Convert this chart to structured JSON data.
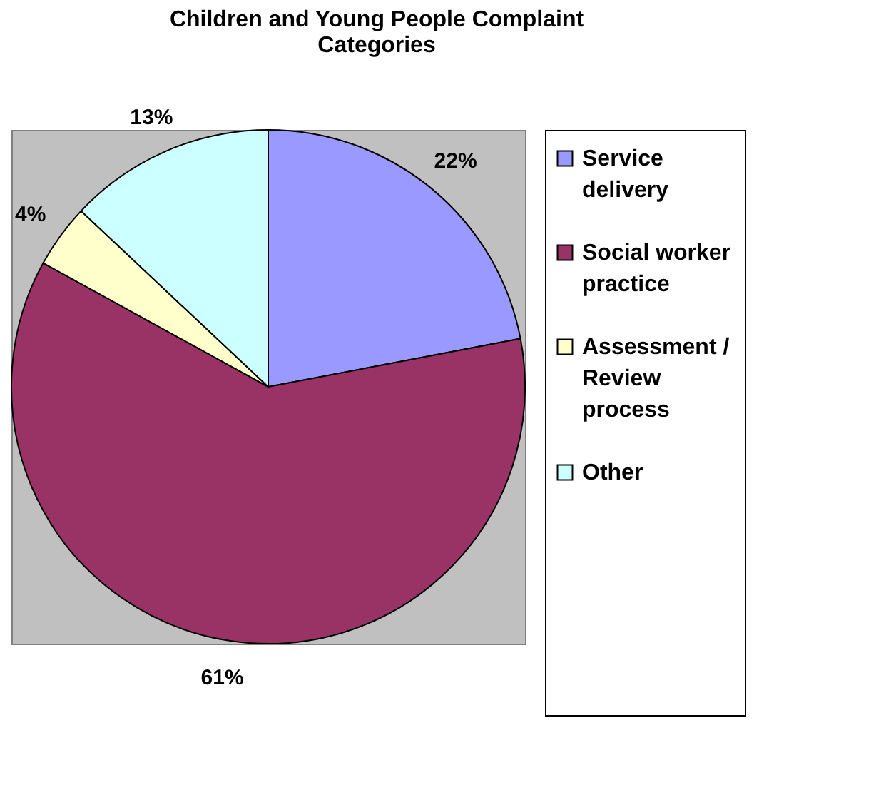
{
  "chart_data": {
    "type": "pie",
    "title": "Children and Young People Complaint Categories",
    "categories": [
      "Service delivery",
      "Social worker practice",
      "Assessment / Review process",
      "Other"
    ],
    "values": [
      22,
      61,
      4,
      13
    ],
    "colors": [
      "#9999ff",
      "#993366",
      "#ffffcc",
      "#ccffff"
    ],
    "value_labels": [
      "22%",
      "61%",
      "4%",
      "13%"
    ],
    "legend": "right"
  }
}
